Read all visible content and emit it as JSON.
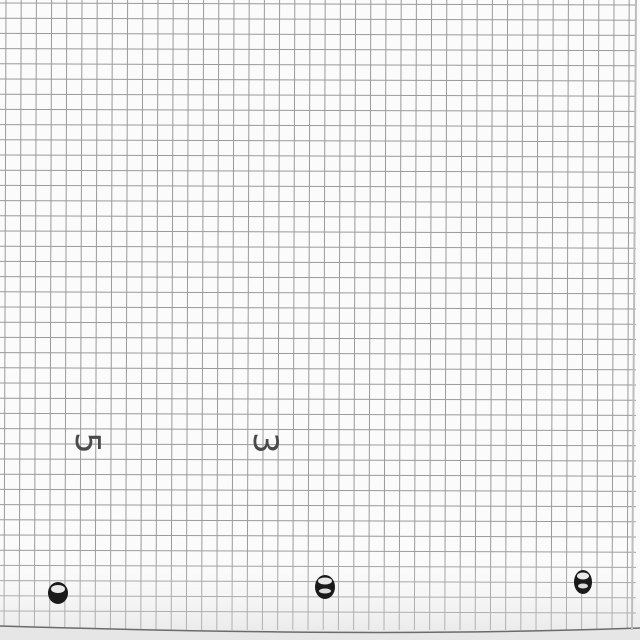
{
  "scene": {
    "handwritten_digits": [
      "5",
      "3"
    ],
    "paper_color": "#fbfbfb",
    "grid_line_color": "#9a9a9a",
    "hole_color": "#1a1a1a"
  }
}
